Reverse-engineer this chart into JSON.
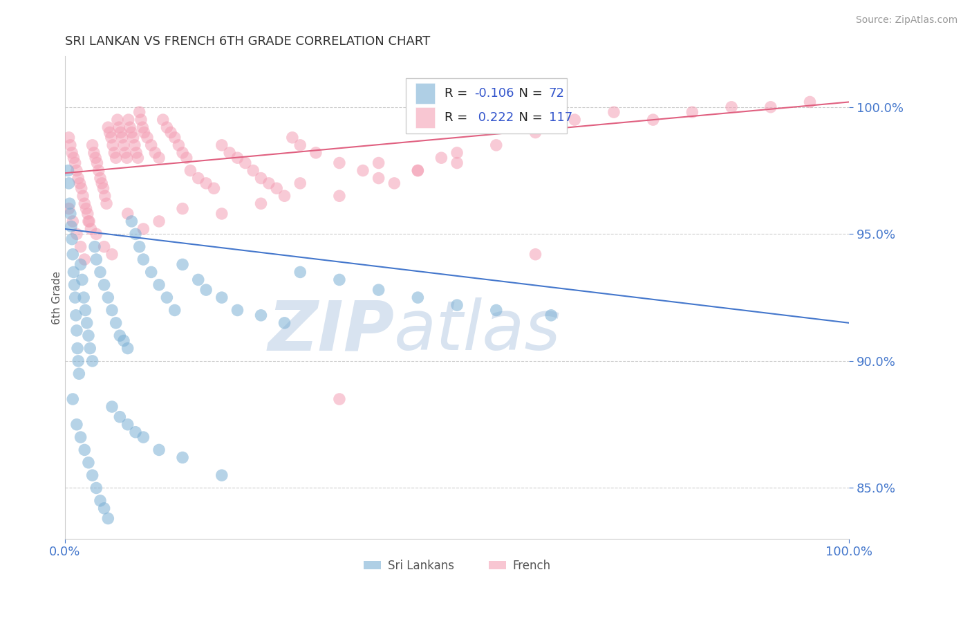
{
  "title": "SRI LANKAN VS FRENCH 6TH GRADE CORRELATION CHART",
  "source_text": "Source: ZipAtlas.com",
  "ylabel": "6th Grade",
  "xlim": [
    0.0,
    100.0
  ],
  "ylim": [
    83.0,
    102.0
  ],
  "yticks": [
    85.0,
    90.0,
    95.0,
    100.0
  ],
  "ytick_labels": [
    "85.0%",
    "90.0%",
    "95.0%",
    "100.0%"
  ],
  "xticks": [
    0.0,
    100.0
  ],
  "xtick_labels": [
    "0.0%",
    "100.0%"
  ],
  "blue_color": "#7bafd4",
  "pink_color": "#f4a0b5",
  "trend_blue_color": "#4477cc",
  "trend_pink_color": "#e06080",
  "legend_r_color": "#3355cc",
  "axis_tick_color": "#4477cc",
  "grid_color": "#cccccc",
  "background_color": "#ffffff",
  "watermark_color": "#ccd8e8",
  "blue_R": -0.106,
  "blue_N": 72,
  "pink_R": 0.222,
  "pink_N": 117,
  "blue_trend_x0": 0.0,
  "blue_trend_y0": 95.2,
  "blue_trend_x1": 100.0,
  "blue_trend_y1": 91.5,
  "pink_trend_x0": 0.0,
  "pink_trend_y0": 97.4,
  "pink_trend_x1": 100.0,
  "pink_trend_y1": 100.2,
  "blue_points": [
    [
      0.4,
      97.5
    ],
    [
      0.5,
      97.0
    ],
    [
      0.6,
      96.2
    ],
    [
      0.7,
      95.8
    ],
    [
      0.8,
      95.3
    ],
    [
      0.9,
      94.8
    ],
    [
      1.0,
      94.2
    ],
    [
      1.1,
      93.5
    ],
    [
      1.2,
      93.0
    ],
    [
      1.3,
      92.5
    ],
    [
      1.4,
      91.8
    ],
    [
      1.5,
      91.2
    ],
    [
      1.6,
      90.5
    ],
    [
      1.7,
      90.0
    ],
    [
      1.8,
      89.5
    ],
    [
      2.0,
      93.8
    ],
    [
      2.2,
      93.2
    ],
    [
      2.4,
      92.5
    ],
    [
      2.6,
      92.0
    ],
    [
      2.8,
      91.5
    ],
    [
      3.0,
      91.0
    ],
    [
      3.2,
      90.5
    ],
    [
      3.5,
      90.0
    ],
    [
      3.8,
      94.5
    ],
    [
      4.0,
      94.0
    ],
    [
      4.5,
      93.5
    ],
    [
      5.0,
      93.0
    ],
    [
      5.5,
      92.5
    ],
    [
      6.0,
      92.0
    ],
    [
      6.5,
      91.5
    ],
    [
      7.0,
      91.0
    ],
    [
      7.5,
      90.8
    ],
    [
      8.0,
      90.5
    ],
    [
      8.5,
      95.5
    ],
    [
      9.0,
      95.0
    ],
    [
      9.5,
      94.5
    ],
    [
      10.0,
      94.0
    ],
    [
      11.0,
      93.5
    ],
    [
      12.0,
      93.0
    ],
    [
      13.0,
      92.5
    ],
    [
      14.0,
      92.0
    ],
    [
      15.0,
      93.8
    ],
    [
      17.0,
      93.2
    ],
    [
      18.0,
      92.8
    ],
    [
      20.0,
      92.5
    ],
    [
      22.0,
      92.0
    ],
    [
      25.0,
      91.8
    ],
    [
      28.0,
      91.5
    ],
    [
      30.0,
      93.5
    ],
    [
      35.0,
      93.2
    ],
    [
      40.0,
      92.8
    ],
    [
      45.0,
      92.5
    ],
    [
      50.0,
      92.2
    ],
    [
      55.0,
      92.0
    ],
    [
      62.0,
      91.8
    ],
    [
      1.0,
      88.5
    ],
    [
      1.5,
      87.5
    ],
    [
      2.0,
      87.0
    ],
    [
      2.5,
      86.5
    ],
    [
      3.0,
      86.0
    ],
    [
      3.5,
      85.5
    ],
    [
      4.0,
      85.0
    ],
    [
      4.5,
      84.5
    ],
    [
      5.0,
      84.2
    ],
    [
      5.5,
      83.8
    ],
    [
      6.0,
      88.2
    ],
    [
      7.0,
      87.8
    ],
    [
      8.0,
      87.5
    ],
    [
      9.0,
      87.2
    ],
    [
      10.0,
      87.0
    ],
    [
      12.0,
      86.5
    ],
    [
      15.0,
      86.2
    ],
    [
      20.0,
      85.5
    ]
  ],
  "pink_points": [
    [
      0.5,
      98.8
    ],
    [
      0.7,
      98.5
    ],
    [
      0.9,
      98.2
    ],
    [
      1.1,
      98.0
    ],
    [
      1.3,
      97.8
    ],
    [
      1.5,
      97.5
    ],
    [
      1.7,
      97.2
    ],
    [
      1.9,
      97.0
    ],
    [
      2.1,
      96.8
    ],
    [
      2.3,
      96.5
    ],
    [
      2.5,
      96.2
    ],
    [
      2.7,
      96.0
    ],
    [
      2.9,
      95.8
    ],
    [
      3.1,
      95.5
    ],
    [
      3.3,
      95.2
    ],
    [
      3.5,
      98.5
    ],
    [
      3.7,
      98.2
    ],
    [
      3.9,
      98.0
    ],
    [
      4.1,
      97.8
    ],
    [
      4.3,
      97.5
    ],
    [
      4.5,
      97.2
    ],
    [
      4.7,
      97.0
    ],
    [
      4.9,
      96.8
    ],
    [
      5.1,
      96.5
    ],
    [
      5.3,
      96.2
    ],
    [
      5.5,
      99.2
    ],
    [
      5.7,
      99.0
    ],
    [
      5.9,
      98.8
    ],
    [
      6.1,
      98.5
    ],
    [
      6.3,
      98.2
    ],
    [
      6.5,
      98.0
    ],
    [
      6.7,
      99.5
    ],
    [
      6.9,
      99.2
    ],
    [
      7.1,
      99.0
    ],
    [
      7.3,
      98.8
    ],
    [
      7.5,
      98.5
    ],
    [
      7.7,
      98.2
    ],
    [
      7.9,
      98.0
    ],
    [
      8.1,
      99.5
    ],
    [
      8.3,
      99.2
    ],
    [
      8.5,
      99.0
    ],
    [
      8.7,
      98.8
    ],
    [
      8.9,
      98.5
    ],
    [
      9.1,
      98.2
    ],
    [
      9.3,
      98.0
    ],
    [
      9.5,
      99.8
    ],
    [
      9.7,
      99.5
    ],
    [
      9.9,
      99.2
    ],
    [
      10.1,
      99.0
    ],
    [
      10.5,
      98.8
    ],
    [
      11.0,
      98.5
    ],
    [
      11.5,
      98.2
    ],
    [
      12.0,
      98.0
    ],
    [
      12.5,
      99.5
    ],
    [
      13.0,
      99.2
    ],
    [
      13.5,
      99.0
    ],
    [
      14.0,
      98.8
    ],
    [
      14.5,
      98.5
    ],
    [
      15.0,
      98.2
    ],
    [
      15.5,
      98.0
    ],
    [
      16.0,
      97.5
    ],
    [
      17.0,
      97.2
    ],
    [
      18.0,
      97.0
    ],
    [
      19.0,
      96.8
    ],
    [
      20.0,
      98.5
    ],
    [
      21.0,
      98.2
    ],
    [
      22.0,
      98.0
    ],
    [
      23.0,
      97.8
    ],
    [
      24.0,
      97.5
    ],
    [
      25.0,
      97.2
    ],
    [
      26.0,
      97.0
    ],
    [
      27.0,
      96.8
    ],
    [
      28.0,
      96.5
    ],
    [
      29.0,
      98.8
    ],
    [
      30.0,
      98.5
    ],
    [
      32.0,
      98.2
    ],
    [
      35.0,
      97.8
    ],
    [
      38.0,
      97.5
    ],
    [
      40.0,
      97.2
    ],
    [
      42.0,
      97.0
    ],
    [
      45.0,
      97.5
    ],
    [
      48.0,
      98.0
    ],
    [
      50.0,
      97.8
    ],
    [
      55.0,
      98.5
    ],
    [
      60.0,
      99.0
    ],
    [
      65.0,
      99.5
    ],
    [
      70.0,
      99.8
    ],
    [
      75.0,
      99.5
    ],
    [
      80.0,
      99.8
    ],
    [
      85.0,
      100.0
    ],
    [
      90.0,
      100.0
    ],
    [
      95.0,
      100.2
    ],
    [
      0.5,
      96.0
    ],
    [
      1.0,
      95.5
    ],
    [
      1.5,
      95.0
    ],
    [
      2.0,
      94.5
    ],
    [
      2.5,
      94.0
    ],
    [
      3.0,
      95.5
    ],
    [
      4.0,
      95.0
    ],
    [
      5.0,
      94.5
    ],
    [
      6.0,
      94.2
    ],
    [
      8.0,
      95.8
    ],
    [
      10.0,
      95.2
    ],
    [
      12.0,
      95.5
    ],
    [
      15.0,
      96.0
    ],
    [
      20.0,
      95.8
    ],
    [
      25.0,
      96.2
    ],
    [
      30.0,
      97.0
    ],
    [
      35.0,
      96.5
    ],
    [
      40.0,
      97.8
    ],
    [
      45.0,
      97.5
    ],
    [
      50.0,
      98.2
    ],
    [
      35.0,
      88.5
    ],
    [
      60.0,
      94.2
    ]
  ]
}
